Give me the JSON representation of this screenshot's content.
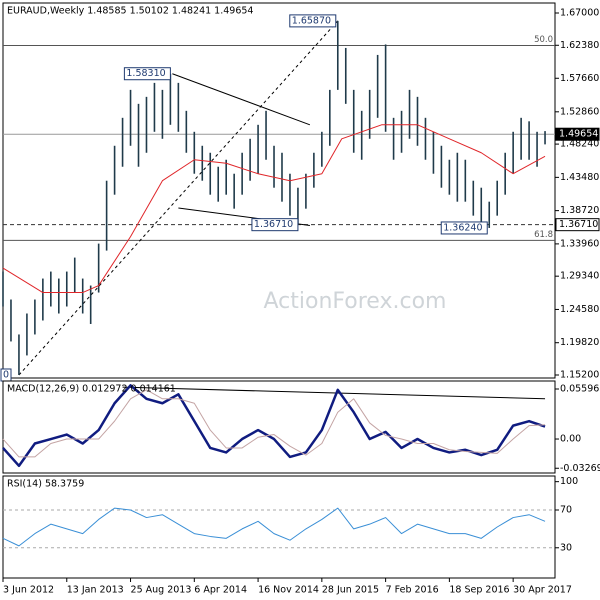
{
  "chart_data": [
    {
      "type": "ohlc",
      "title": "EURAUD,Weekly  1.48585 1.50102 1.48241 1.49654",
      "color": "#1f3a4a",
      "x": [
        0,
        4,
        8,
        12,
        16,
        20,
        24,
        28,
        32,
        36,
        40,
        44,
        48,
        52,
        56,
        60,
        64,
        68,
        72,
        76,
        80,
        84,
        88,
        92,
        96,
        100,
        104,
        108,
        112,
        116,
        120,
        124,
        128,
        132,
        136,
        140,
        144,
        148,
        152,
        156,
        160,
        164,
        168,
        172,
        176,
        180,
        184,
        188,
        192,
        196,
        200,
        204,
        208,
        212,
        216,
        220,
        224,
        228,
        232,
        236,
        240,
        244,
        248,
        252,
        256,
        260,
        264,
        268,
        272
      ],
      "high": [
        1.3,
        1.26,
        1.21,
        1.24,
        1.26,
        1.29,
        1.3,
        1.29,
        1.3,
        1.32,
        1.29,
        1.28,
        1.34,
        1.43,
        1.48,
        1.52,
        1.56,
        1.54,
        1.55,
        1.57,
        1.56,
        1.583,
        1.57,
        1.53,
        1.5,
        1.48,
        1.47,
        1.45,
        1.46,
        1.44,
        1.47,
        1.49,
        1.51,
        1.53,
        1.48,
        1.47,
        1.44,
        1.42,
        1.44,
        1.47,
        1.5,
        1.56,
        1.6587,
        1.62,
        1.56,
        1.53,
        1.56,
        1.61,
        1.625,
        1.52,
        1.53,
        1.56,
        1.55,
        1.52,
        1.5,
        1.48,
        1.46,
        1.47,
        1.46,
        1.43,
        1.42,
        1.4,
        1.43,
        1.47,
        1.5,
        1.52,
        1.515,
        1.5,
        1.501
      ],
      "low": [
        1.25,
        1.2,
        1.152,
        1.18,
        1.21,
        1.23,
        1.25,
        1.24,
        1.25,
        1.27,
        1.24,
        1.225,
        1.27,
        1.33,
        1.41,
        1.45,
        1.48,
        1.45,
        1.47,
        1.5,
        1.49,
        1.51,
        1.5,
        1.47,
        1.44,
        1.43,
        1.41,
        1.4,
        1.41,
        1.39,
        1.41,
        1.43,
        1.44,
        1.46,
        1.42,
        1.4,
        1.38,
        1.367,
        1.39,
        1.42,
        1.45,
        1.48,
        1.56,
        1.54,
        1.47,
        1.46,
        1.49,
        1.52,
        1.5,
        1.46,
        1.47,
        1.49,
        1.48,
        1.46,
        1.44,
        1.42,
        1.41,
        1.4,
        1.4,
        1.38,
        1.37,
        1.3624,
        1.38,
        1.41,
        1.44,
        1.46,
        1.46,
        1.45,
        1.482
      ],
      "ma": {
        "color": "#e0262a",
        "x": [
          0,
          20,
          40,
          48,
          64,
          80,
          96,
          112,
          128,
          144,
          160,
          170,
          190,
          208,
          224,
          240,
          256,
          272
        ],
        "values": [
          1.305,
          1.27,
          1.27,
          1.28,
          1.35,
          1.43,
          1.46,
          1.455,
          1.44,
          1.43,
          1.44,
          1.49,
          1.51,
          1.51,
          1.49,
          1.47,
          1.44,
          1.465
        ]
      },
      "xlim": [
        0,
        277
      ],
      "ylim": [
        1.1477,
        1.6843
      ],
      "yticks": [
        {
          "value": 1.67,
          "label": "1.67000"
        },
        {
          "value": 1.6238,
          "label": "1.62380"
        },
        {
          "value": 1.5766,
          "label": "1.57660"
        },
        {
          "value": 1.5286,
          "label": "1.52860"
        },
        {
          "value": 1.4824,
          "label": "1.48240"
        },
        {
          "value": 1.4348,
          "label": "1.43480"
        },
        {
          "value": 1.3872,
          "label": "1.38720"
        },
        {
          "value": 1.3396,
          "label": "1.33960"
        },
        {
          "value": 1.2934,
          "label": "1.29340"
        },
        {
          "value": 1.2458,
          "label": "1.24580"
        },
        {
          "value": 1.1982,
          "label": "1.19820"
        },
        {
          "value": 1.152,
          "label": "1.15200"
        }
      ],
      "levels": [
        {
          "value": 1.6235,
          "label": "50.0",
          "style": "solid"
        },
        {
          "value": 1.3447,
          "label": "61.8",
          "style": "solid"
        },
        {
          "value": 1.3671,
          "label": "1.36710",
          "style": "dashed"
        },
        {
          "value": 1.49654,
          "label": "1.49654",
          "style": "current"
        }
      ],
      "annotations": [
        {
          "label": "1.65870",
          "x": 168,
          "y": 1.6587
        },
        {
          "label": "1.58310",
          "x": 85,
          "y": 1.5831
        },
        {
          "label": "1.36710",
          "x": 149,
          "y": 1.3671
        },
        {
          "label": "1.36240",
          "x": 244,
          "y": 1.3624
        },
        {
          "label": "0",
          "x": 0,
          "y": 1.152
        }
      ],
      "trendlines": [
        {
          "x": [
            8,
            168
          ],
          "y": [
            1.152,
            1.6587
          ],
          "style": "dashed"
        },
        {
          "x": [
            85,
            154
          ],
          "y": [
            1.5831,
            1.51
          ],
          "style": "solid"
        },
        {
          "x": [
            88,
            154
          ],
          "y": [
            1.391,
            1.366
          ],
          "style": "solid"
        }
      ],
      "watermark": "ActionForex.com"
    },
    {
      "type": "line",
      "title": "MACD(12,26,9) 0.012972 0.014161",
      "x": [
        0,
        8,
        16,
        24,
        32,
        40,
        48,
        56,
        64,
        72,
        80,
        88,
        96,
        104,
        112,
        120,
        128,
        136,
        144,
        152,
        160,
        168,
        176,
        184,
        192,
        200,
        208,
        216,
        224,
        232,
        240,
        248,
        256,
        264,
        272
      ],
      "series": [
        {
          "color": "#101c80",
          "width": 2.5,
          "values": [
            -0.01,
            -0.03,
            -0.005,
            0,
            0.005,
            -0.005,
            0.01,
            0.04,
            0.06,
            0.045,
            0.04,
            0.05,
            0.02,
            -0.01,
            -0.015,
            0,
            0.01,
            0,
            -0.02,
            -0.015,
            0.01,
            0.055,
            0.03,
            0,
            0.008,
            -0.01,
            0,
            -0.01,
            -0.015,
            -0.012,
            -0.018,
            -0.012,
            0.015,
            0.02,
            0.014
          ]
        },
        {
          "color": "#c4a4a4",
          "width": 1,
          "values": [
            0,
            -0.02,
            -0.02,
            -0.005,
            0,
            0,
            0,
            0.02,
            0.045,
            0.055,
            0.045,
            0.045,
            0.04,
            0.01,
            -0.01,
            -0.01,
            0.002,
            0.005,
            -0.008,
            -0.018,
            -0.005,
            0.03,
            0.045,
            0.018,
            0.004,
            0,
            -0.005,
            -0.005,
            -0.012,
            -0.014,
            -0.015,
            -0.016,
            0,
            0.015,
            0.016
          ]
        }
      ],
      "trendlines": [
        {
          "x": [
            60,
            272
          ],
          "y": [
            0.058,
            0.045
          ],
          "style": "solid"
        }
      ],
      "xlim": [
        0,
        277
      ],
      "ylim": [
        -0.038,
        0.0649
      ],
      "yticks": [
        0.055965,
        {
          "value": 0,
          "label": "0.00"
        },
        -0.03269
      ]
    },
    {
      "type": "line",
      "title": "RSI(14) 58.3759",
      "x": [
        0,
        8,
        16,
        24,
        32,
        40,
        48,
        56,
        64,
        72,
        80,
        88,
        96,
        104,
        112,
        120,
        128,
        136,
        144,
        152,
        160,
        168,
        176,
        184,
        192,
        200,
        208,
        216,
        224,
        232,
        240,
        248,
        256,
        264,
        272
      ],
      "series": [
        {
          "color": "#3a8fd6",
          "width": 1,
          "values": [
            40,
            32,
            45,
            55,
            50,
            45,
            60,
            72,
            70,
            62,
            65,
            55,
            45,
            42,
            40,
            50,
            58,
            45,
            38,
            50,
            60,
            72,
            50,
            55,
            62,
            45,
            55,
            50,
            45,
            45,
            40,
            52,
            62,
            65,
            58
          ]
        }
      ],
      "xlim": [
        0,
        277
      ],
      "ylim": [
        -2,
        106
      ],
      "yticks": [
        100,
        70,
        30
      ],
      "dashed_ticks": [
        70,
        30
      ],
      "xticks": [
        {
          "value": 0,
          "label": "3 Jun 2012"
        },
        {
          "value": 32,
          "label": "13 Jan 2013"
        },
        {
          "value": 64,
          "label": "25 Aug 2013"
        },
        {
          "value": 96,
          "label": "6 Apr 2014"
        },
        {
          "value": 128,
          "label": "16 Nov 2014"
        },
        {
          "value": 160,
          "label": "28 Jun 2015"
        },
        {
          "value": 192,
          "label": "7 Feb 2016"
        },
        {
          "value": 224,
          "label": "18 Sep 2016"
        },
        {
          "value": 256,
          "label": "30 Apr 2017"
        }
      ]
    }
  ]
}
